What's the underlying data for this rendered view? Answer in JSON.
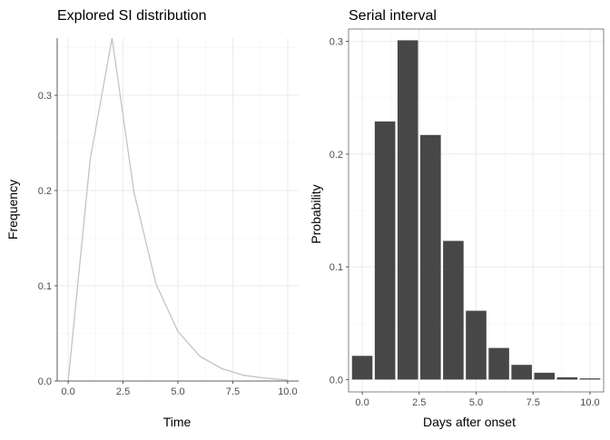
{
  "chart_data": [
    {
      "type": "line",
      "title": "Explored SI distribution",
      "xlabel": "Time",
      "ylabel": "Frequency",
      "xlim": [
        -0.5,
        10.5
      ],
      "ylim": [
        0,
        0.36
      ],
      "x_ticks": [
        0,
        2.5,
        5,
        7.5,
        10
      ],
      "x_tick_labels": [
        "0.0",
        "2.5",
        "5.0",
        "7.5",
        "10.0"
      ],
      "y_ticks": [
        0,
        0.1,
        0.2,
        0.3
      ],
      "y_tick_labels": [
        "0.0",
        "0.1",
        "0.2",
        "0.3"
      ],
      "grid": true,
      "line_color": "#c4c4c4",
      "series": [
        {
          "x": [
            0,
            1,
            2,
            3,
            4,
            5,
            6,
            7,
            8,
            9,
            10
          ],
          "values": [
            0.0,
            0.232,
            0.36,
            0.198,
            0.102,
            0.052,
            0.026,
            0.013,
            0.006,
            0.003,
            0.001
          ]
        }
      ]
    },
    {
      "type": "bar",
      "title": "Serial interval",
      "xlabel": "Days after onset",
      "ylabel": "Probability",
      "xlim": [
        -0.6,
        10.6
      ],
      "ylim": [
        -0.011,
        0.311
      ],
      "x_ticks": [
        0,
        2.5,
        5,
        7.5,
        10
      ],
      "x_tick_labels": [
        "0.0",
        "2.5",
        "5.0",
        "7.5",
        "10.0"
      ],
      "y_ticks": [
        0,
        0.1,
        0.2,
        0.3
      ],
      "y_tick_labels": [
        "0.0",
        "0.1",
        "0.2",
        "0.3"
      ],
      "grid": true,
      "bar_color": "#474747",
      "bar_width": 0.9,
      "categories": [
        0,
        1,
        2,
        3,
        4,
        5,
        6,
        7,
        8,
        9,
        10
      ],
      "values": [
        0.021,
        0.229,
        0.301,
        0.217,
        0.123,
        0.061,
        0.028,
        0.013,
        0.006,
        0.002,
        0.001
      ]
    }
  ]
}
